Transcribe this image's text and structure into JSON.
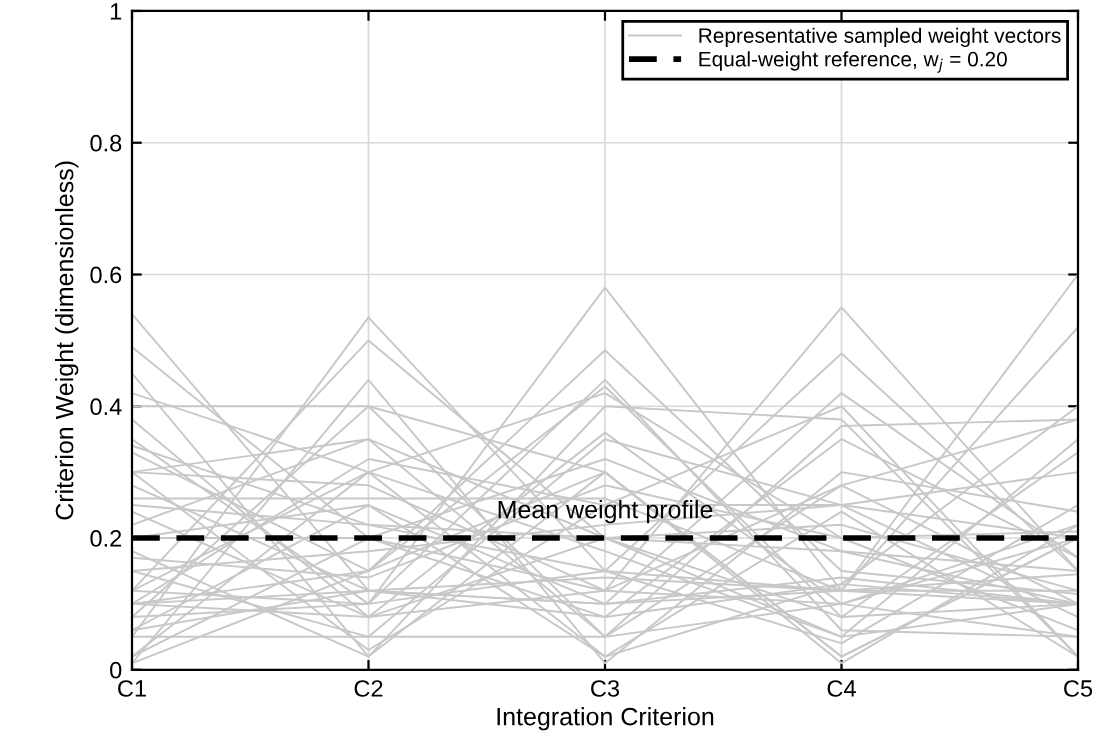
{
  "chart_data": {
    "type": "line",
    "xlabel": "Integration Criterion",
    "ylabel": "Criterion Weight (dimensionless)",
    "categories": [
      "C1",
      "C2",
      "C3",
      "C4",
      "C5"
    ],
    "ylim": [
      0,
      1
    ],
    "yticks": [
      0,
      0.2,
      0.4,
      0.6,
      0.8,
      1
    ],
    "grid": true,
    "legend": "top right",
    "line_style": "solid",
    "ref_lines": [
      {
        "axis": "y",
        "value": 0.2,
        "label": "Equal-weight reference, w$_{j}$ = 0.20",
        "color": "#000000",
        "line_style": "dashed"
      }
    ],
    "annotations": [
      "Mean weight profile"
    ],
    "series": [
      {
        "name": "Representative sampled weight vectors",
        "color": "#c8c8c8",
        "values": [
          0.54,
          0.12,
          0.1,
          0.14,
          0.1
        ]
      },
      {
        "color": "#c8c8c8",
        "values": [
          0.05,
          0.535,
          0.15,
          0.12,
          0.145
        ]
      },
      {
        "color": "#c8c8c8",
        "values": [
          0.08,
          0.1,
          0.58,
          0.12,
          0.12
        ]
      },
      {
        "color": "#c8c8c8",
        "values": [
          0.1,
          0.08,
          0.12,
          0.55,
          0.15
        ]
      },
      {
        "color": "#c8c8c8",
        "values": [
          0.06,
          0.12,
          0.1,
          0.12,
          0.6
        ]
      },
      {
        "color": "#c8c8c8",
        "values": [
          0.49,
          0.2,
          0.08,
          0.13,
          0.1
        ]
      },
      {
        "color": "#c8c8c8",
        "values": [
          0.12,
          0.5,
          0.2,
          0.08,
          0.1
        ]
      },
      {
        "color": "#c8c8c8",
        "values": [
          0.1,
          0.15,
          0.485,
          0.15,
          0.115
        ]
      },
      {
        "color": "#c8c8c8",
        "values": [
          0.12,
          0.1,
          0.15,
          0.48,
          0.15
        ]
      },
      {
        "color": "#c8c8c8",
        "values": [
          0.1,
          0.12,
          0.14,
          0.12,
          0.52
        ]
      },
      {
        "color": "#c8c8c8",
        "values": [
          0.4,
          0.4,
          0.05,
          0.1,
          0.05
        ]
      },
      {
        "color": "#c8c8c8",
        "values": [
          0.35,
          0.1,
          0.44,
          0.06,
          0.05
        ]
      },
      {
        "color": "#c8c8c8",
        "values": [
          0.02,
          0.3,
          0.42,
          0.2,
          0.06
        ]
      },
      {
        "color": "#c8c8c8",
        "values": [
          0.3,
          0.03,
          0.25,
          0.4,
          0.02
        ]
      },
      {
        "color": "#c8c8c8",
        "values": [
          0.2,
          0.25,
          0.02,
          0.13,
          0.4
        ]
      },
      {
        "color": "#c8c8c8",
        "values": [
          0.01,
          0.44,
          0.01,
          0.3,
          0.24
        ]
      },
      {
        "color": "#c8c8c8",
        "values": [
          0.45,
          0.02,
          0.3,
          0.01,
          0.22
        ]
      },
      {
        "color": "#c8c8c8",
        "values": [
          0.25,
          0.22,
          0.2,
          0.18,
          0.15
        ]
      },
      {
        "color": "#c8c8c8",
        "values": [
          0.15,
          0.18,
          0.22,
          0.25,
          0.2
        ]
      },
      {
        "color": "#c8c8c8",
        "values": [
          0.3,
          0.28,
          0.12,
          0.1,
          0.2
        ]
      },
      {
        "color": "#c8c8c8",
        "values": [
          0.05,
          0.05,
          0.35,
          0.25,
          0.3
        ]
      },
      {
        "color": "#c8c8c8",
        "values": [
          0.22,
          0.35,
          0.05,
          0.28,
          0.1
        ]
      },
      {
        "color": "#c8c8c8",
        "values": [
          0.33,
          0.15,
          0.3,
          0.02,
          0.2
        ]
      },
      {
        "color": "#c8c8c8",
        "values": [
          0.18,
          0.02,
          0.4,
          0.38,
          0.02
        ]
      },
      {
        "color": "#c8c8c8",
        "values": [
          0.12,
          0.3,
          0.18,
          0.05,
          0.35
        ]
      },
      {
        "color": "#c8c8c8",
        "values": [
          0.28,
          0.12,
          0.08,
          0.35,
          0.17
        ]
      },
      {
        "color": "#c8c8c8",
        "values": [
          0.38,
          0.08,
          0.2,
          0.22,
          0.12
        ]
      },
      {
        "color": "#c8c8c8",
        "values": [
          0.08,
          0.4,
          0.3,
          0.02,
          0.2
        ]
      },
      {
        "color": "#c8c8c8",
        "values": [
          0.26,
          0.26,
          0.26,
          0.12,
          0.1
        ]
      },
      {
        "color": "#c8c8c8",
        "values": [
          0.02,
          0.2,
          0.12,
          0.28,
          0.38
        ]
      },
      {
        "color": "#c8c8c8",
        "values": [
          0.42,
          0.3,
          0.02,
          0.24,
          0.02
        ]
      },
      {
        "color": "#c8c8c8",
        "values": [
          0.15,
          0.05,
          0.05,
          0.37,
          0.38
        ]
      },
      {
        "color": "#c8c8c8",
        "values": [
          0.2,
          0.2,
          0.32,
          0.18,
          0.1
        ]
      },
      {
        "color": "#c8c8c8",
        "values": [
          0.1,
          0.32,
          0.25,
          0.25,
          0.08
        ]
      },
      {
        "color": "#c8c8c8",
        "values": [
          0.34,
          0.22,
          0.15,
          0.04,
          0.25
        ]
      },
      {
        "color": "#c8c8c8",
        "values": [
          0.24,
          0.08,
          0.36,
          0.1,
          0.22
        ]
      },
      {
        "color": "#c8c8c8",
        "values": [
          0.06,
          0.25,
          0.1,
          0.42,
          0.17
        ]
      },
      {
        "color": "#c8c8c8",
        "values": [
          0.3,
          0.35,
          0.2,
          0.05,
          0.1
        ]
      },
      {
        "color": "#c8c8c8",
        "values": [
          0.17,
          0.14,
          0.28,
          0.2,
          0.21
        ]
      },
      {
        "color": "#c8c8c8",
        "values": [
          0.01,
          0.15,
          0.43,
          0.08,
          0.33
        ]
      }
    ]
  }
}
